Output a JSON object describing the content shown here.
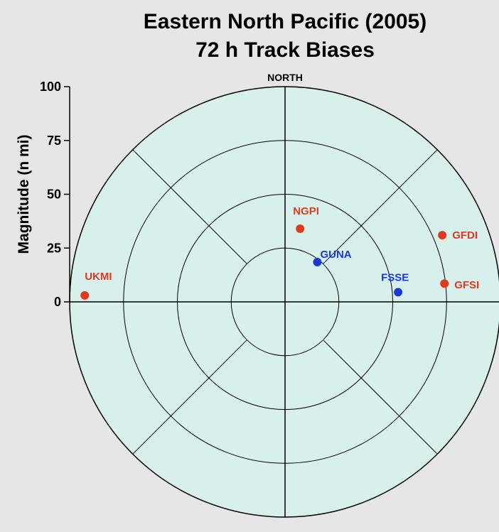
{
  "chart_data": {
    "type": "scatter",
    "subtype": "polar",
    "title": "Eastern North Pacific (2005)",
    "subtitle": "72 h Track Biases",
    "ylabel": "Magnitude (n mi)",
    "direction_label": "NORTH",
    "rlim": [
      0,
      100
    ],
    "ticks": [
      "0",
      "25",
      "50",
      "75",
      "100"
    ],
    "tick_values": [
      0,
      25,
      50,
      75,
      100
    ],
    "grid": true,
    "background_color": "#d7f0ec",
    "page_background": "#e6e6e6",
    "points": [
      {
        "label": "UKMI",
        "x": -93,
        "y": 3,
        "color": "#e03a1e"
      },
      {
        "label": "NGPI",
        "x": 7,
        "y": 34,
        "color": "#e03a1e"
      },
      {
        "label": "GUNA",
        "x": 15,
        "y": 18.5,
        "color": "#1a3ad6"
      },
      {
        "label": "FSSE",
        "x": 52.5,
        "y": 4.5,
        "color": "#1a3ad6"
      },
      {
        "label": "GFDI",
        "x": 73,
        "y": 31,
        "color": "#e03a1e"
      },
      {
        "label": "GFSI",
        "x": 74,
        "y": 8.5,
        "color": "#e03a1e"
      }
    ]
  }
}
